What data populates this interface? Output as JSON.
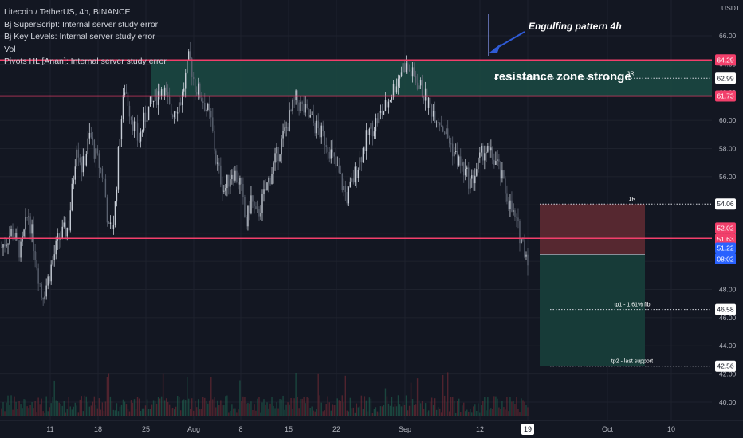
{
  "legend": {
    "symbol": "Litecoin / TetherUS, 4h, BINANCE",
    "study1": "Bj SuperScript: Internal server study error",
    "study2": "Bj Key Levels: Internal server study error",
    "study3": "Vol",
    "study4": "Pivots HL [Anan]: Internal server study error"
  },
  "annotations": {
    "engulfing": "Engulfing pattern 4h",
    "resistance": "resistance zone stronge"
  },
  "colors": {
    "background": "#131722",
    "bull": "#c7cdd6",
    "bear": "#5b6270",
    "zone_line": "#f23f6b",
    "zone_fill": "#1b4a43",
    "stop_fill": "#5a2931",
    "target_fill": "#173d3a",
    "current_price": "#2962ff",
    "arrow": "#2f5bd6"
  },
  "chart_data": {
    "type": "candlestick",
    "title": "Litecoin / TetherUS, 4h, BINANCE",
    "price_axis_unit": "USDT",
    "y_ticks": [
      40.0,
      42.0,
      44.0,
      46.0,
      48.0,
      50.0,
      52.0,
      54.0,
      56.0,
      58.0,
      60.0,
      62.0,
      64.0,
      66.0
    ],
    "ylim": [
      39.6,
      67.2
    ],
    "x_ticks": [
      "11",
      "18",
      "25",
      "Aug",
      "8",
      "15",
      "22",
      "Sep",
      "12",
      "19",
      "Oct",
      "10"
    ],
    "grid": true,
    "legend_position": "top-left",
    "price_path": [
      {
        "t": 0,
        "p": 51.0
      },
      {
        "t": 0.04,
        "p": 52.2
      },
      {
        "t": 0.07,
        "p": 50.6
      },
      {
        "t": 0.1,
        "p": 53.5
      },
      {
        "t": 0.13,
        "p": 50.0
      },
      {
        "t": 0.15,
        "p": 47.5
      },
      {
        "t": 0.17,
        "p": 48.5
      },
      {
        "t": 0.21,
        "p": 51.5
      },
      {
        "t": 0.25,
        "p": 52.5
      },
      {
        "t": 0.28,
        "p": 58.5
      },
      {
        "t": 0.3,
        "p": 56.5
      },
      {
        "t": 0.33,
        "p": 59.0
      },
      {
        "t": 0.35,
        "p": 57.5
      },
      {
        "t": 0.38,
        "p": 56.0
      },
      {
        "t": 0.4,
        "p": 52.0
      },
      {
        "t": 0.42,
        "p": 53.0
      },
      {
        "t": 0.44,
        "p": 59.0
      },
      {
        "t": 0.46,
        "p": 62.5
      },
      {
        "t": 0.48,
        "p": 60.5
      },
      {
        "t": 0.51,
        "p": 58.5
      },
      {
        "t": 0.54,
        "p": 60.5
      },
      {
        "t": 0.57,
        "p": 61.5
      },
      {
        "t": 0.6,
        "p": 62.5
      },
      {
        "t": 0.63,
        "p": 60.5
      },
      {
        "t": 0.67,
        "p": 61.5
      },
      {
        "t": 0.7,
        "p": 64.5
      },
      {
        "t": 0.72,
        "p": 62.5
      },
      {
        "t": 0.75,
        "p": 61.5
      },
      {
        "t": 0.78,
        "p": 60.0
      },
      {
        "t": 0.8,
        "p": 57.0
      },
      {
        "t": 0.83,
        "p": 55.0
      },
      {
        "t": 0.86,
        "p": 56.5
      },
      {
        "t": 0.89,
        "p": 55.5
      },
      {
        "t": 0.91,
        "p": 52.5
      },
      {
        "t": 0.93,
        "p": 54.5
      },
      {
        "t": 0.95,
        "p": 53.0
      },
      {
        "t": 1.0,
        "p": 56.0
      }
    ],
    "price_path_part2": [
      {
        "t": 0,
        "p": 56.0
      },
      {
        "t": 0.1,
        "p": 61.5
      },
      {
        "t": 0.16,
        "p": 60.0
      },
      {
        "t": 0.22,
        "p": 58.5
      },
      {
        "t": 0.3,
        "p": 54.5
      },
      {
        "t": 0.38,
        "p": 59.0
      },
      {
        "t": 0.45,
        "p": 61.0
      },
      {
        "t": 0.52,
        "p": 64.0
      },
      {
        "t": 0.58,
        "p": 62.5
      },
      {
        "t": 0.62,
        "p": 61.0
      },
      {
        "t": 0.66,
        "p": 60.0
      },
      {
        "t": 0.72,
        "p": 57.5
      },
      {
        "t": 0.78,
        "p": 55.5
      },
      {
        "t": 0.83,
        "p": 58.0
      },
      {
        "t": 0.88,
        "p": 57.0
      },
      {
        "t": 0.93,
        "p": 54.0
      },
      {
        "t": 1.0,
        "p": 50.3
      }
    ],
    "levels": [
      {
        "price": 64.29,
        "label": "64.29",
        "kind": "resistance-top"
      },
      {
        "price": 61.73,
        "label": "61.73",
        "kind": "resistance-bottom"
      },
      {
        "price": 51.63,
        "label": "51.63",
        "kind": "support"
      }
    ],
    "resistance_zone": [
      61.73,
      64.29
    ],
    "position_tool": {
      "entry": 51.22,
      "stop": 54.06,
      "target_1": 46.58,
      "target_2": 42.56,
      "r3_level": 62.99,
      "stop_label": "1R",
      "r3_label": "3R",
      "target_1_label": "tp1 - 1.61% fib",
      "target_2_label": "tp2 - last support"
    },
    "axis_labels": [
      {
        "price": 64.29,
        "text": "64.29",
        "style": "red"
      },
      {
        "price": 62.99,
        "text": "62.99",
        "style": "white"
      },
      {
        "price": 61.73,
        "text": "61.73",
        "style": "red"
      },
      {
        "price": 54.06,
        "text": "54.06",
        "style": "white"
      },
      {
        "price": 52.02,
        "text": "52.02",
        "style": "red"
      },
      {
        "price": 51.63,
        "text": "51.63",
        "style": "red"
      },
      {
        "price": 51.22,
        "text": "51.22",
        "style": "blue"
      },
      {
        "price": 46.58,
        "text": "46.58",
        "style": "white"
      },
      {
        "price": 42.56,
        "text": "42.56",
        "style": "white"
      }
    ],
    "countdown": "08:02",
    "arrow": {
      "label": "Engulfing pattern 4h"
    }
  }
}
